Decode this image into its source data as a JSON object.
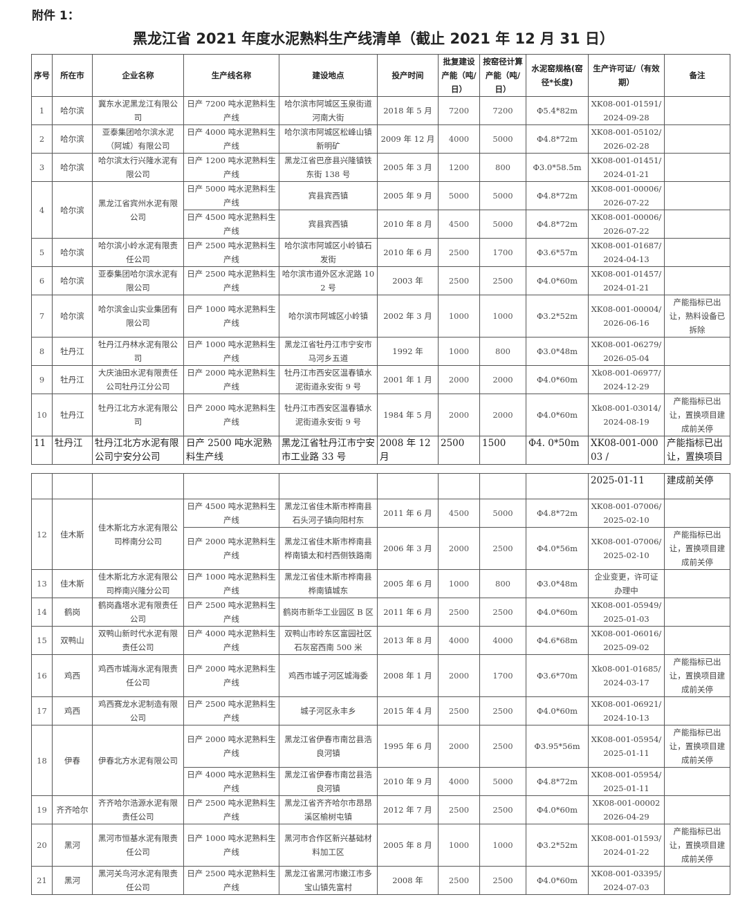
{
  "attachment_label": "附件 1：",
  "title": "黑龙江省 2021 年度水泥熟料生产线清单（截止 2021 年 12 月 31 日）",
  "headers": [
    "序号",
    "所在市",
    "企业名称",
    "生产线名称",
    "建设地点",
    "投产时间",
    "批复建设产能（吨/日）",
    "按窑径计算产能（吨/日）",
    "水泥窑规格(窑径*长度)",
    "生产许可证/（有效期）",
    "备注"
  ],
  "page1": [
    {
      "no": "1",
      "city": "哈尔滨",
      "company": "冀东水泥黑龙江有限公司",
      "lines": [
        {
          "line": "日产 7200 吨水泥熟料生产线",
          "site": "哈尔滨市阿城区玉泉街道河南大街",
          "time": "2018 年 5 月",
          "approved": "7200",
          "calc": "7200",
          "kiln": "Φ5.4*82m",
          "license": "XK08-001-01591/ 2024-09-28",
          "note": ""
        }
      ]
    },
    {
      "no": "2",
      "city": "哈尔滨",
      "company": "亚泰集团哈尔滨水泥（阿城）有限公司",
      "lines": [
        {
          "line": "日产 4000 吨水泥熟料生产线",
          "site": "哈尔滨市阿城区松峰山镇新明矿",
          "time": "2009 年 12 月",
          "approved": "4000",
          "calc": "5000",
          "kiln": "Φ4.8*72m",
          "license": "XK08-001-05102/ 2026-02-28",
          "note": ""
        }
      ]
    },
    {
      "no": "3",
      "city": "哈尔滨",
      "company": "哈尔滨太行兴隆水泥有限公司",
      "lines": [
        {
          "line": "日产 1200 吨水泥熟料生产线",
          "site": "黑龙江省巴彦县兴隆镇铁东街 138 号",
          "time": "2005 年 3 月",
          "approved": "1200",
          "calc": "800",
          "kiln": "Φ3.0*58.5m",
          "license": "XK08-001-01451/ 2024-01-21",
          "note": ""
        }
      ]
    },
    {
      "no": "4",
      "city": "哈尔滨",
      "company": "黑龙江省宾州水泥有限公司",
      "lines": [
        {
          "line": "日产 5000 吨水泥熟料生产线",
          "site": "宾县宾西镇",
          "time": "2005 年 9 月",
          "approved": "5000",
          "calc": "5000",
          "kiln": "Φ4.8*72m",
          "license": "XK08-001-00006/ 2026-07-22",
          "note": ""
        },
        {
          "line": "日产 4500 吨水泥熟料生产线",
          "site": "宾县宾西镇",
          "time": "2010 年 8 月",
          "approved": "4500",
          "calc": "5000",
          "kiln": "Φ4.8*72m",
          "license": "XK08-001-00006/ 2026-07-22",
          "note": ""
        }
      ]
    },
    {
      "no": "5",
      "city": "哈尔滨",
      "company": "哈尔滨小岭水泥有限责任公司",
      "lines": [
        {
          "line": "日产 2500 吨水泥熟料生产线",
          "site": "哈尔滨市阿城区小岭镇石发街",
          "time": "2010 年 6 月",
          "approved": "2500",
          "calc": "1700",
          "kiln": "Φ3.6*57m",
          "license": "XK08-001-01687/ 2024-04-13",
          "note": ""
        }
      ]
    },
    {
      "no": "6",
      "city": "哈尔滨",
      "company": "亚泰集团哈尔滨水泥有限公司",
      "lines": [
        {
          "line": "日产 2500 吨水泥熟料生产线",
          "site": "哈尔滨市道外区水泥路 102 号",
          "time": "2003 年",
          "approved": "2500",
          "calc": "2500",
          "kiln": "Φ4.0*60m",
          "license": "XK08-001-01457/ 2024-01-21",
          "note": ""
        }
      ]
    },
    {
      "no": "7",
      "city": "哈尔滨",
      "company": "哈尔滨金山实业集团有限公司",
      "lines": [
        {
          "line": "日产 1000 吨水泥熟料生产线",
          "site": "哈尔滨市阿城区小岭镇",
          "time": "2002 年 3 月",
          "approved": "1000",
          "calc": "1000",
          "kiln": "Φ3.2*52m",
          "license": "XK08-001-00004/ 2026-06-16",
          "note": "产能指标已出让，熟料设备已拆除"
        }
      ]
    },
    {
      "no": "8",
      "city": "牡丹江",
      "company": "牡丹江丹林水泥有限公司",
      "lines": [
        {
          "line": "日产 1000 吨水泥熟料生产线",
          "site": "黑龙江省牡丹江市宁安市马河乡五道",
          "time": "1992 年",
          "approved": "1000",
          "calc": "800",
          "kiln": "Φ3.0*48m",
          "license": "XK08-001-06279/ 2026-05-04",
          "note": ""
        }
      ]
    },
    {
      "no": "9",
      "city": "牡丹江",
      "company": "大庆油田水泥有限责任公司牡丹江分公司",
      "lines": [
        {
          "line": "日产 2000 吨水泥熟料生产线",
          "site": "牡丹江市西安区温春镇水泥街道永安街 9 号",
          "time": "2001 年 1 月",
          "approved": "2000",
          "calc": "2000",
          "kiln": "Φ4.0*60m",
          "license": "Xk08-001-06977/ 2024-12-29",
          "note": ""
        }
      ]
    },
    {
      "no": "10",
      "city": "牡丹江",
      "company": "牡丹江北方水泥有限公司",
      "lines": [
        {
          "line": "日产 2000 吨水泥熟料生产线",
          "site": "牡丹江市西安区温春镇水泥街道永安街 9 号",
          "time": "1984 年 5 月",
          "approved": "2000",
          "calc": "2000",
          "kiln": "Φ4.0*60m",
          "license": "Xk08-001-03014/ 2024-08-19",
          "note": "产能指标已出让，置换项目建成前关停"
        }
      ]
    },
    {
      "no": "11",
      "city": "牡丹江",
      "company": "牡丹江北方水泥有限公司宁安分公司",
      "big": true,
      "lines": [
        {
          "line": "日产 2500 吨水泥熟料生产线",
          "site": "黑龙江省牡丹江市宁安市工业路 33 号",
          "time": "2008 年 12 月",
          "approved": "2500",
          "calc": "1500",
          "kiln": "Φ4. 0*50m",
          "license": "XK08-001-00003 /",
          "note": "产能指标已出让，置换项目"
        }
      ]
    }
  ],
  "page2": [
    {
      "no": "",
      "city": "",
      "company": "",
      "big": true,
      "lines": [
        {
          "line": "",
          "site": "",
          "time": "",
          "approved": "",
          "calc": "",
          "kiln": "",
          "license": "2025-01-11",
          "note": "建成前关停"
        }
      ]
    },
    {
      "no": "12",
      "city": "佳木斯",
      "company": "佳木斯北方水泥有限公司桦南分公司",
      "lines": [
        {
          "line": "日产 4500 吨水泥熟料生产线",
          "site": "黑龙江省佳木斯市桦南县石头河子镇向阳村东",
          "time": "2011 年 6 月",
          "approved": "4500",
          "calc": "5000",
          "kiln": "Φ4.8*72m",
          "license": "XK08-001-07006/ 2025-02-10",
          "note": ""
        },
        {
          "line": "日产 2000 吨水泥熟料生产线",
          "site": "黑龙江省佳木斯市桦南县桦南镇太和村西侧铁路南",
          "time": "2006 年 3 月",
          "approved": "2000",
          "calc": "2500",
          "kiln": "Φ4.0*56m",
          "license": "XK08-001-07006/ 2025-02-10",
          "note": "产能指标已出让，置换项目建成前关停"
        }
      ]
    },
    {
      "no": "13",
      "city": "佳木斯",
      "company": "佳木斯北方水泥有限公司桦南兴隆分公司",
      "lines": [
        {
          "line": "日产 1000 吨水泥熟料生产线",
          "site": "黑龙江省佳木斯市桦南县桦南镇城东",
          "time": "2005 年 6 月",
          "approved": "1000",
          "calc": "800",
          "kiln": "Φ3.0*48m",
          "license": "企业变更，许可证办理中",
          "note": ""
        }
      ]
    },
    {
      "no": "14",
      "city": "鹤岗",
      "company": "鹤岗鑫塔水泥有限责任公司",
      "lines": [
        {
          "line": "日产 2500 吨水泥熟料生产线",
          "site": "鹤岗市新华工业园区 B 区",
          "time": "2011 年 6 月",
          "approved": "2500",
          "calc": "2500",
          "kiln": "Φ4.0*60m",
          "license": "XK08-001-05949/ 2025-01-03",
          "note": ""
        }
      ]
    },
    {
      "no": "15",
      "city": "双鸭山",
      "company": "双鸭山新时代水泥有限责任公司",
      "lines": [
        {
          "line": "日产 4000 吨水泥熟料生产线",
          "site": "双鸭山市岭东区富园社区石灰窑西南 500 米",
          "time": "2013 年 8 月",
          "approved": "4000",
          "calc": "4000",
          "kiln": "Φ4.6*68m",
          "license": "XK08-001-06016/ 2025-09-02",
          "note": ""
        }
      ]
    },
    {
      "no": "16",
      "city": "鸡西",
      "company": "鸡西市城海水泥有限责任公司",
      "lines": [
        {
          "line": "日产 2000 吨水泥熟料生产线",
          "site": "鸡西市城子河区城海委",
          "time": "2008 年 1 月",
          "approved": "2000",
          "calc": "1700",
          "kiln": "Φ3.6*70m",
          "license": "Xk08-001-01685/ 2024-03-17",
          "note": "产能指标已出让，置换项目建成前关停"
        }
      ]
    },
    {
      "no": "17",
      "city": "鸡西",
      "company": "鸡西赛龙水泥制造有限公司",
      "lines": [
        {
          "line": "日产 2500 吨水泥熟料生产线",
          "site": "城子河区永丰乡",
          "time": "2015 年 4 月",
          "approved": "2500",
          "calc": "2500",
          "kiln": "Φ4.0*60m",
          "license": "XK08-001-06921/ 2024-10-13",
          "note": ""
        }
      ]
    },
    {
      "no": "18",
      "city": "伊春",
      "company": "伊春北方水泥有限公司",
      "lines": [
        {
          "line": "日产 2000 吨水泥熟料生产线",
          "site": "黑龙江省伊春市南岔县浩良河镇",
          "time": "1995 年 6 月",
          "approved": "2000",
          "calc": "2500",
          "kiln": "Φ3.95*56m",
          "license": "XK08-001-05954/ 2025-01-11",
          "note": "产能指标已出让，置换项目建成前关停"
        },
        {
          "line": "日产 4000 吨水泥熟料生产线",
          "site": "黑龙江省伊春市南岔县浩良河镇",
          "time": "2010 年 9 月",
          "approved": "4000",
          "calc": "5000",
          "kiln": "Φ4.8*72m",
          "license": "XK08-001-05954/ 2025-01-11",
          "note": ""
        }
      ]
    },
    {
      "no": "19",
      "city": "齐齐哈尔",
      "company": "齐齐哈尔浩源水泥有限责任公司",
      "lines": [
        {
          "line": "日产 2500 吨水泥熟料生产线",
          "site": "黑龙江省齐齐哈尔市昂昂溪区榆树屯镇",
          "time": "2012 年 7 月",
          "approved": "2500",
          "calc": "2500",
          "kiln": "Φ4.0*60m",
          "license": "XK08-001-00002 2026-04-29",
          "note": ""
        }
      ]
    },
    {
      "no": "20",
      "city": "黑河",
      "company": "黑河市恒基水泥有限责任公司",
      "lines": [
        {
          "line": "日产 1000 吨水泥熟料生产线",
          "site": "黑河市合作区新兴基础材料加工区",
          "time": "2005 年 8 月",
          "approved": "1000",
          "calc": "1000",
          "kiln": "Φ3.2*52m",
          "license": "XK08-001-01593/ 2024-01-22",
          "note": "产能指标已出让，置换项目建成前关停"
        }
      ]
    },
    {
      "no": "21",
      "city": "黑河",
      "company": "黑河关鸟河水泥有限责任公司",
      "lines": [
        {
          "line": "日产 2500 吨水泥熟料生产线",
          "site": "黑龙江省黑河市嫩江市多宝山镇先富村",
          "time": "2008 年",
          "approved": "2500",
          "calc": "2500",
          "kiln": "Φ4.0*60m",
          "license": "XK08-001-03395/ 2024-07-03",
          "note": ""
        }
      ]
    }
  ]
}
